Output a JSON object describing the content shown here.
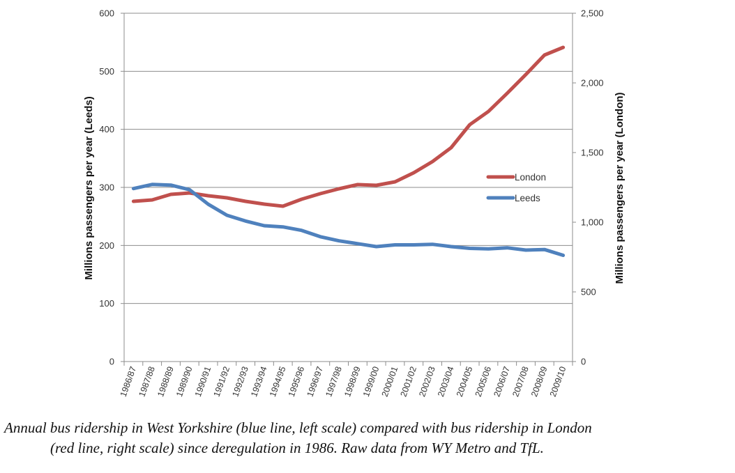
{
  "chart_data": {
    "type": "line",
    "categories": [
      "1986/87",
      "1987/88",
      "1988/89",
      "1989/90",
      "1990/91",
      "1991/92",
      "1992/93",
      "1993/94",
      "1994/95",
      "1995/96",
      "1996/97",
      "1997/98",
      "1998/99",
      "1999/00",
      "2000/01",
      "2001/02",
      "2002/03",
      "2003/04",
      "2004/05",
      "2005/06",
      "2006/07",
      "2007/08",
      "2008/09",
      "2009/10"
    ],
    "series": [
      {
        "name": "London",
        "axis": "right",
        "color": "#C0504D",
        "values": [
          1150,
          1160,
          1200,
          1210,
          1190,
          1175,
          1150,
          1130,
          1115,
          1165,
          1205,
          1240,
          1270,
          1265,
          1290,
          1355,
          1435,
          1535,
          1700,
          1795,
          1925,
          2060,
          2200,
          2255
        ]
      },
      {
        "name": "Leeds",
        "axis": "left",
        "color": "#4F81BD",
        "values": [
          298,
          305,
          304,
          296,
          271,
          252,
          242,
          234,
          232,
          226,
          215,
          208,
          203,
          198,
          201,
          201,
          202,
          198,
          195,
          194,
          196,
          192,
          193,
          183
        ]
      }
    ],
    "ylabel_left": "Millions passengers per year (Leeds)",
    "ylabel_right": "Millions passengers per year (London)",
    "ylim_left": [
      0,
      600
    ],
    "ylim_right": [
      0,
      2500
    ],
    "yticks_left": [
      "0",
      "100",
      "200",
      "300",
      "400",
      "500",
      "600"
    ],
    "yticks_right": [
      "0",
      "500",
      "1,000",
      "1,500",
      "2,000",
      "2,500"
    ],
    "grid": true,
    "legend_position": "center-right"
  },
  "caption": {
    "line1": "Annual bus ridership in West Yorkshire (blue line, left scale) compared with bus ridership in London",
    "line2": "(red line, right scale) since deregulation in 1986. Raw data from WY Metro and TfL."
  }
}
